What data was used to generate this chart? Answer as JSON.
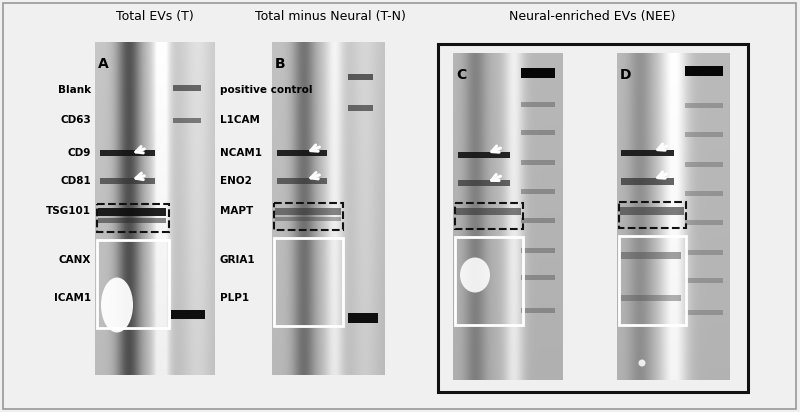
{
  "fig_width": 8.0,
  "fig_height": 4.12,
  "bg_color": "#f0f0f0",
  "title_A": "Total EVs (T)",
  "title_B": "Total minus Neural (T-N)",
  "title_CD": "Neural-enriched EVs (NEE)",
  "left_labels": [
    "Blank",
    "CD63",
    "CD9",
    "CD81",
    "TSG101",
    "CANX",
    "ICAM1"
  ],
  "right_labels": [
    "positive control",
    "L1CAM",
    "NCAM1",
    "ENO2",
    "MAPT",
    "GRIA1",
    "PLP1"
  ],
  "panel_labels": [
    "A",
    "B",
    "C",
    "D"
  ],
  "nee_border_color": "#111111",
  "outer_border_color": "#aaaaaa"
}
